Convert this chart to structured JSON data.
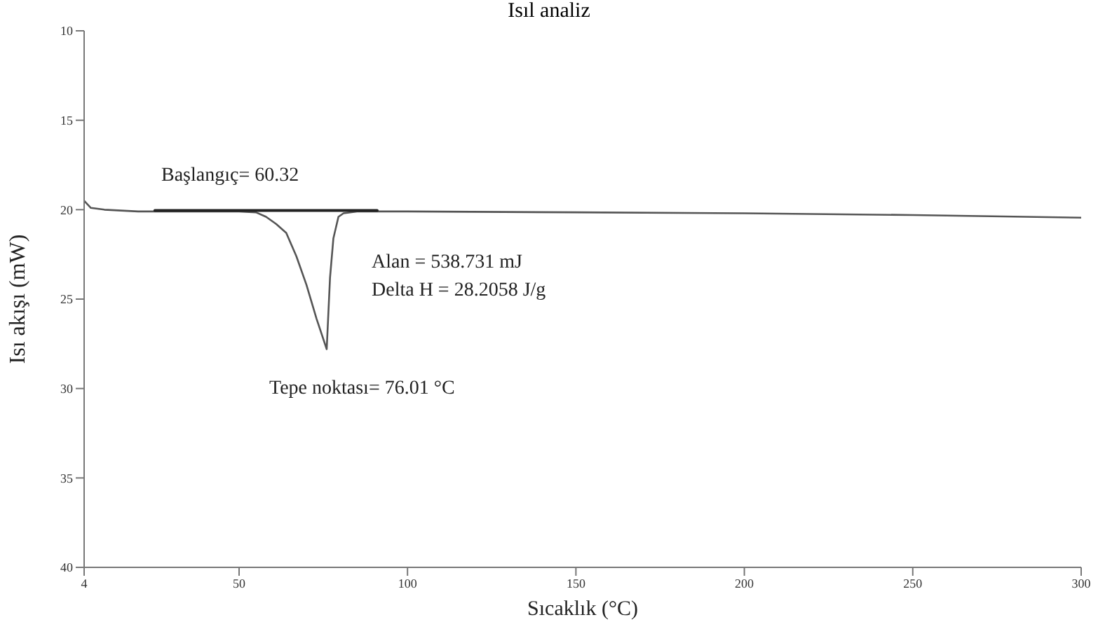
{
  "chart_data": {
    "type": "line",
    "title": "Isıl analiz",
    "xlabel": "Sıcaklık (°C)",
    "ylabel": "Isı akışı (mW)",
    "xlim": [
      4,
      300
    ],
    "xticks": [
      4,
      50,
      100,
      150,
      200,
      250,
      300
    ],
    "ylim": [
      40,
      10
    ],
    "yticks": [
      10,
      15,
      20,
      25,
      30,
      35,
      40
    ],
    "grid": false,
    "marker": "none",
    "line_style": "solid",
    "series": [
      {
        "color": "#555555",
        "x": [
          4,
          6,
          10,
          20,
          30,
          40,
          50,
          55,
          58,
          61,
          64,
          67,
          70,
          73,
          76.01,
          77,
          78,
          79.5,
          81,
          85,
          100,
          150,
          200,
          250,
          300
        ],
        "values": [
          19.5,
          19.9,
          20.0,
          20.1,
          20.1,
          20.1,
          20.1,
          20.15,
          20.4,
          20.8,
          21.3,
          22.6,
          24.2,
          26.1,
          27.8,
          23.8,
          21.6,
          20.4,
          20.2,
          20.1,
          20.1,
          20.15,
          20.2,
          20.3,
          20.45
        ]
      },
      {
        "color": "#222222",
        "x": [
          25,
          91
        ],
        "values": [
          20.05,
          20.05
        ]
      }
    ],
    "annotations": [
      "Başlangıç= 60.32",
      "Alan = 538.731 mJ",
      "Delta H = 28.2058 J/g",
      "Tepe noktası= 76.01 °C"
    ]
  }
}
